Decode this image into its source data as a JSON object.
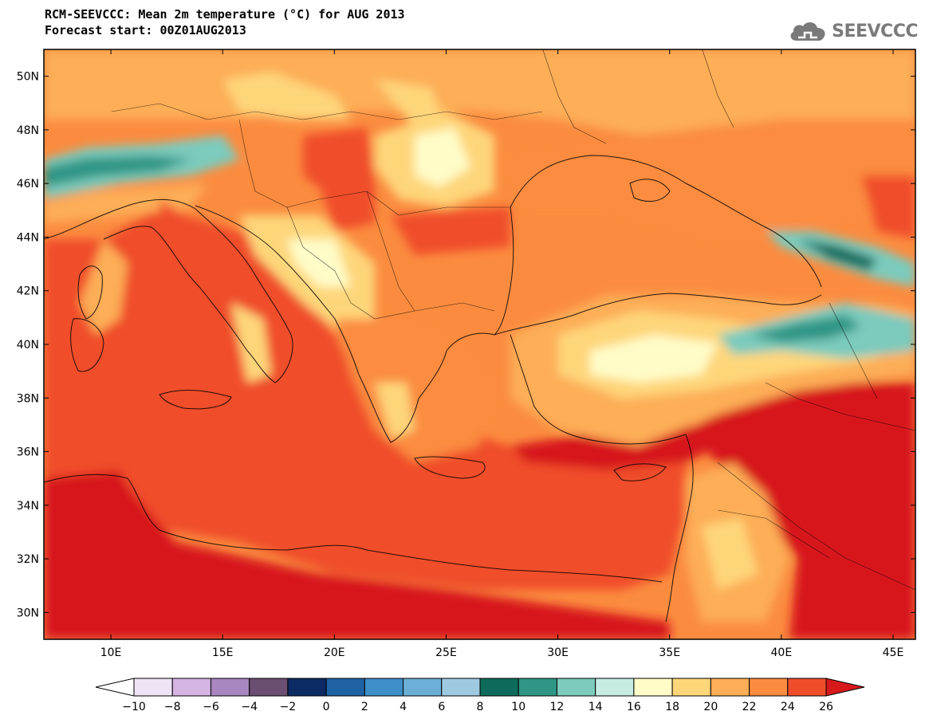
{
  "header": {
    "title_line1": "RCM-SEEVCCC: Mean 2m temperature (°C) for AUG 2013",
    "title_line2": "Forecast start: 00Z01AUG2013",
    "logo_text": "SEEVCCC"
  },
  "map": {
    "lon_ticks": [
      {
        "value": 10,
        "label": "10E"
      },
      {
        "value": 15,
        "label": "15E"
      },
      {
        "value": 20,
        "label": "20E"
      },
      {
        "value": 25,
        "label": "25E"
      },
      {
        "value": 30,
        "label": "30E"
      },
      {
        "value": 35,
        "label": "35E"
      },
      {
        "value": 40,
        "label": "40E"
      },
      {
        "value": 45,
        "label": "45E"
      }
    ],
    "lat_ticks": [
      {
        "value": 50,
        "label": "50N"
      },
      {
        "value": 48,
        "label": "48N"
      },
      {
        "value": 46,
        "label": "46N"
      },
      {
        "value": 44,
        "label": "44N"
      },
      {
        "value": 42,
        "label": "42N"
      },
      {
        "value": 40,
        "label": "40N"
      },
      {
        "value": 38,
        "label": "38N"
      },
      {
        "value": 36,
        "label": "36N"
      },
      {
        "value": 34,
        "label": "34N"
      },
      {
        "value": 32,
        "label": "32N"
      },
      {
        "value": 30,
        "label": "30N"
      }
    ],
    "lon_range": [
      7,
      46
    ],
    "lat_range": [
      29,
      51
    ]
  },
  "colorbar": {
    "labels": [
      "−10",
      "−8",
      "−6",
      "−4",
      "−2",
      "0",
      "2",
      "4",
      "6",
      "8",
      "10",
      "12",
      "14",
      "16",
      "18",
      "20",
      "22",
      "24",
      "26"
    ],
    "colors": [
      "#ffffff",
      "#efe4f5",
      "#d5b3e3",
      "#a886bf",
      "#6a4f72",
      "#0c2a63",
      "#1f62a3",
      "#3e8ec7",
      "#6baed6",
      "#9ecae1",
      "#0e6b5c",
      "#2f9585",
      "#7ccbbd",
      "#c5ebe3",
      "#fffcc8",
      "#fed67a",
      "#fdae56",
      "#fb8c3f",
      "#f04e2b",
      "#d7191c"
    ]
  }
}
